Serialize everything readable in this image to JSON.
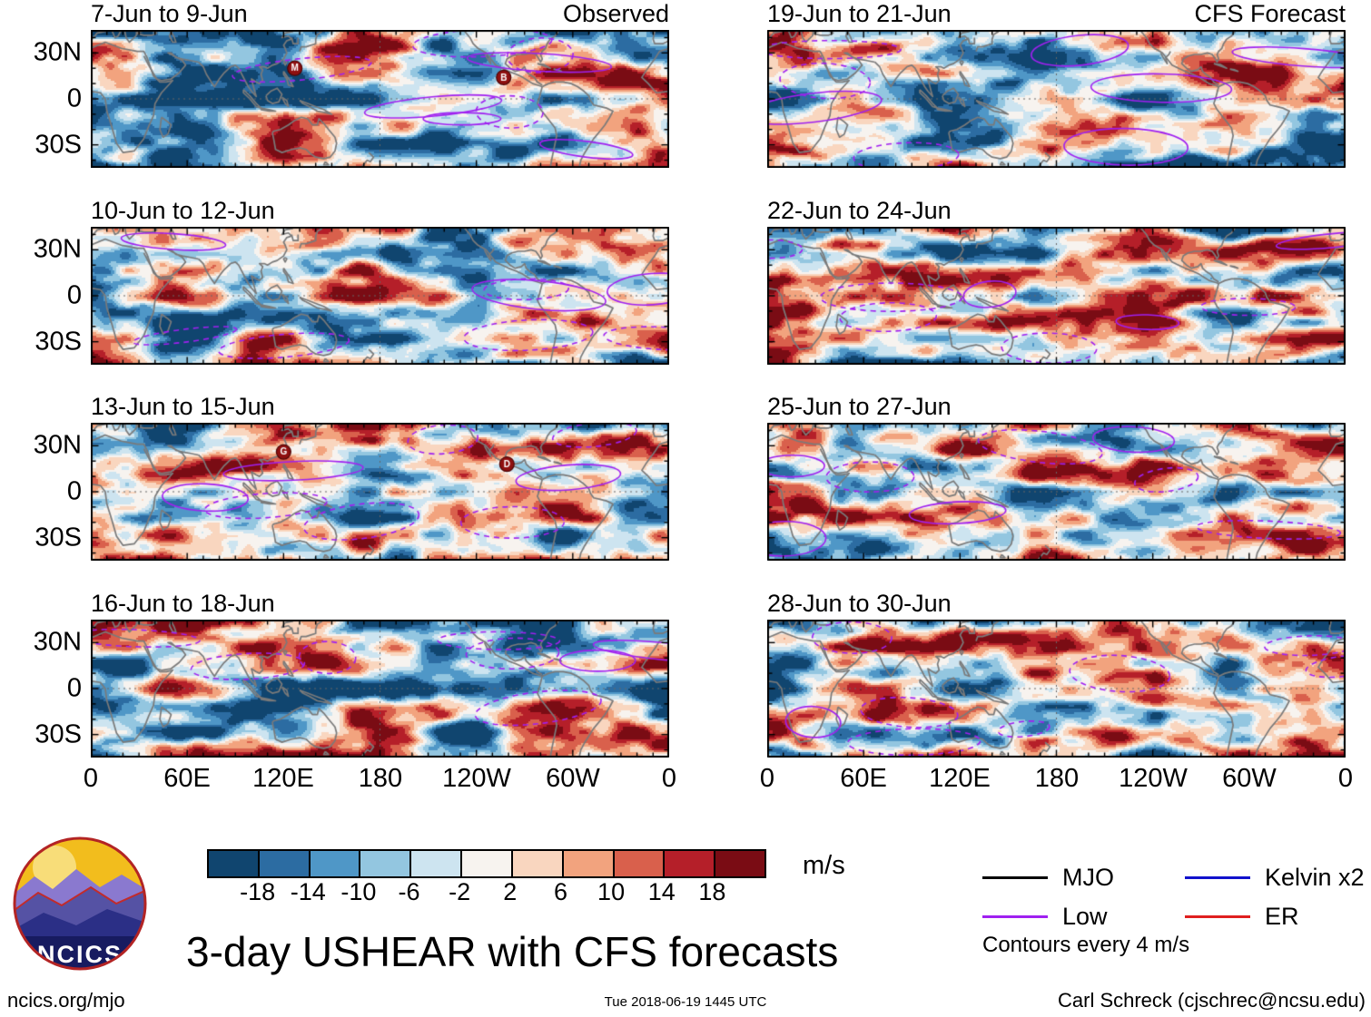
{
  "chart_data": {
    "type": "heatmap",
    "title": "3-day USHEAR with CFS forecasts",
    "units": "m/s",
    "columns": [
      {
        "heading": "Observed"
      },
      {
        "heading": "CFS Forecast"
      }
    ],
    "panels": [
      {
        "title": "7-Jun to 9-Jun",
        "corner": "Observed",
        "column": "Observed",
        "storms": [
          {
            "label": "M",
            "lon": 127,
            "lat": 20
          },
          {
            "label": "B",
            "lon": 257,
            "lat": 14
          }
        ]
      },
      {
        "title": "10-Jun to 12-Jun",
        "column": "Observed",
        "storms": []
      },
      {
        "title": "13-Jun to 15-Jun",
        "column": "Observed",
        "storms": [
          {
            "label": "G",
            "lon": 120,
            "lat": 26
          },
          {
            "label": "D",
            "lon": 259,
            "lat": 18
          }
        ]
      },
      {
        "title": "16-Jun to 18-Jun",
        "column": "Observed",
        "storms": []
      },
      {
        "title": "19-Jun to 21-Jun",
        "corner": "CFS Forecast",
        "column": "CFS Forecast",
        "storms": []
      },
      {
        "title": "22-Jun to 24-Jun",
        "column": "CFS Forecast",
        "storms": []
      },
      {
        "title": "25-Jun to 27-Jun",
        "column": "CFS Forecast",
        "storms": []
      },
      {
        "title": "28-Jun to 30-Jun",
        "column": "CFS Forecast",
        "storms": []
      }
    ],
    "axes": {
      "y_ticks": [
        "30N",
        "0",
        "30S"
      ],
      "x_ticks": [
        "0",
        "60E",
        "120E",
        "180",
        "120W",
        "60W",
        "0"
      ],
      "lat_range": [
        45,
        -45
      ],
      "lon_range": [
        0,
        360
      ],
      "grid": "dotted equator and dateline"
    },
    "colorbar": {
      "ticks": [
        "-18",
        "-14",
        "-10",
        "-6",
        "-2",
        "2",
        "6",
        "10",
        "14",
        "18"
      ],
      "colors": [
        "#10456f",
        "#2c6ca2",
        "#4f97c7",
        "#93c6e0",
        "#cde4f0",
        "#f7f3ef",
        "#f9d6bf",
        "#f2a37e",
        "#d9604c",
        "#b51f29",
        "#7a0c14"
      ],
      "units": "m/s"
    },
    "legend": {
      "items": [
        {
          "label": "MJO",
          "color": "#000000"
        },
        {
          "label": "Low",
          "color": "#a020f0"
        },
        {
          "label": "Kelvin x2",
          "color": "#1111cc"
        },
        {
          "label": "ER",
          "color": "#e01f1f"
        }
      ],
      "note": "Contours every 4 m/s"
    }
  },
  "branding": {
    "logo_text": "NCICS",
    "site_label": "ncics.org/mjo"
  },
  "footer": {
    "timestamp": "Tue 2018-06-19 1445 UTC",
    "credit": "Carl Schreck (cjschrec@ncsu.edu)"
  }
}
